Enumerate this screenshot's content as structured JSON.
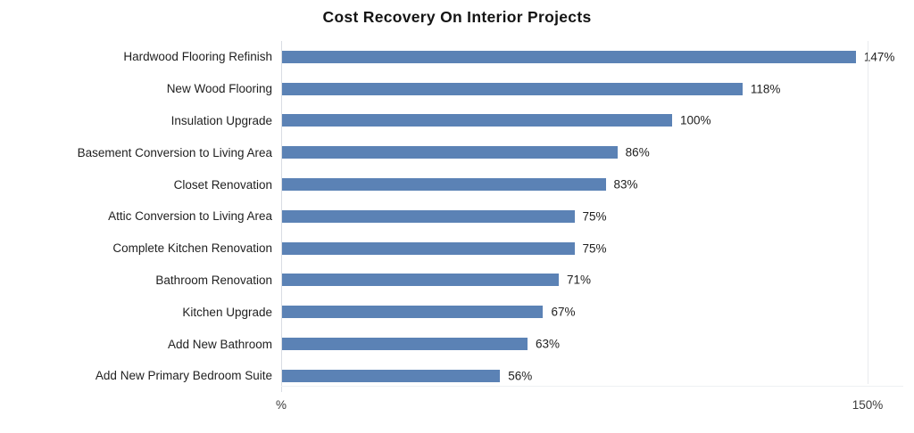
{
  "chart_data": {
    "type": "bar",
    "orientation": "horizontal",
    "title": "Cost Recovery On Interior Projects",
    "categories": [
      "Hardwood Flooring Refinish",
      "New Wood Flooring",
      "Insulation Upgrade",
      "Basement Conversion to Living Area",
      "Closet Renovation",
      "Attic Conversion to Living Area",
      "Complete Kitchen Renovation",
      "Bathroom Renovation",
      "Kitchen Upgrade",
      "Add New Bathroom",
      "Add New Primary Bedroom Suite"
    ],
    "values": [
      147,
      118,
      100,
      86,
      83,
      75,
      75,
      71,
      67,
      63,
      56
    ],
    "unit": "%",
    "xlabel": "%",
    "xlim": [
      0,
      150
    ],
    "x_ticks": [
      "%",
      "150%"
    ],
    "legend": "none",
    "grid": "right-gridline-only"
  },
  "colors": {
    "bar": "#5b82b5",
    "title_text": "#141414",
    "label_text": "#1f1f1f",
    "tick_text": "#3a3a3a",
    "axis_line": "#d9dde3",
    "gridline": "#e9ebee",
    "background": "#ffffff"
  }
}
